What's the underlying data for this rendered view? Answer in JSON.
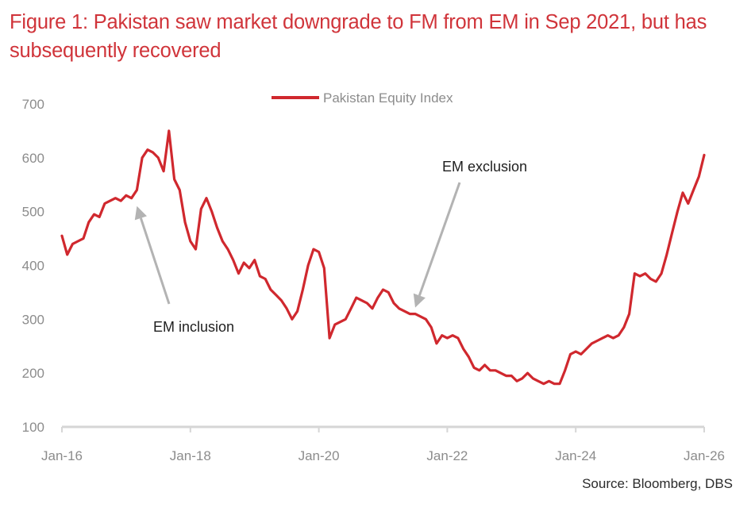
{
  "chart_data": {
    "type": "line",
    "title": "Figure 1: Pakistan saw market downgrade to FM from EM in Sep 2021, but has subsequently recovered",
    "xlabel": "",
    "ylabel": "",
    "ylim": [
      100,
      700
    ],
    "yticks": [
      100,
      200,
      300,
      400,
      500,
      600,
      700
    ],
    "xlim": [
      "2016-01",
      "2026-01"
    ],
    "xticks": [
      {
        "label": "Jan-16",
        "date": "2016-01"
      },
      {
        "label": "Jan-18",
        "date": "2018-01"
      },
      {
        "label": "Jan-20",
        "date": "2020-01"
      },
      {
        "label": "Jan-22",
        "date": "2022-01"
      },
      {
        "label": "Jan-24",
        "date": "2024-01"
      },
      {
        "label": "Jan-26",
        "date": "2026-01"
      }
    ],
    "grid": false,
    "legend": {
      "placement": "top-center",
      "entries": [
        "Pakistan Equity Index"
      ]
    },
    "series": [
      {
        "name": "Pakistan Equity Index",
        "color": "#d0282e",
        "x": [
          "2016-01",
          "2016-02",
          "2016-03",
          "2016-04",
          "2016-05",
          "2016-06",
          "2016-07",
          "2016-08",
          "2016-09",
          "2016-10",
          "2016-11",
          "2016-12",
          "2017-01",
          "2017-02",
          "2017-03",
          "2017-04",
          "2017-05",
          "2017-06",
          "2017-07",
          "2017-08",
          "2017-09",
          "2017-10",
          "2017-11",
          "2017-12",
          "2018-01",
          "2018-02",
          "2018-03",
          "2018-04",
          "2018-05",
          "2018-06",
          "2018-07",
          "2018-08",
          "2018-09",
          "2018-10",
          "2018-11",
          "2018-12",
          "2019-01",
          "2019-02",
          "2019-03",
          "2019-04",
          "2019-05",
          "2019-06",
          "2019-07",
          "2019-08",
          "2019-09",
          "2019-10",
          "2019-11",
          "2019-12",
          "2020-01",
          "2020-02",
          "2020-03",
          "2020-04",
          "2020-05",
          "2020-06",
          "2020-07",
          "2020-08",
          "2020-09",
          "2020-10",
          "2020-11",
          "2020-12",
          "2021-01",
          "2021-02",
          "2021-03",
          "2021-04",
          "2021-05",
          "2021-06",
          "2021-07",
          "2021-08",
          "2021-09",
          "2021-10",
          "2021-11",
          "2021-12",
          "2022-01",
          "2022-02",
          "2022-03",
          "2022-04",
          "2022-05",
          "2022-06",
          "2022-07",
          "2022-08",
          "2022-09",
          "2022-10",
          "2022-11",
          "2022-12",
          "2023-01",
          "2023-02",
          "2023-03",
          "2023-04",
          "2023-05",
          "2023-06",
          "2023-07",
          "2023-08",
          "2023-09",
          "2023-10",
          "2023-11",
          "2023-12",
          "2024-01",
          "2024-02",
          "2024-03",
          "2024-04",
          "2024-05",
          "2024-06",
          "2024-07",
          "2024-08",
          "2024-09",
          "2024-10",
          "2024-11",
          "2024-12",
          "2025-01",
          "2025-02",
          "2025-03",
          "2025-04",
          "2025-05",
          "2025-06",
          "2025-07",
          "2025-08",
          "2025-09",
          "2025-10",
          "2025-11",
          "2025-12",
          "2026-01"
        ],
        "values": [
          455,
          420,
          440,
          445,
          450,
          480,
          495,
          490,
          515,
          520,
          525,
          520,
          530,
          525,
          540,
          600,
          615,
          610,
          600,
          575,
          650,
          560,
          540,
          480,
          445,
          430,
          505,
          525,
          500,
          470,
          445,
          430,
          410,
          385,
          405,
          395,
          410,
          380,
          375,
          355,
          345,
          335,
          320,
          300,
          315,
          355,
          400,
          430,
          425,
          395,
          265,
          290,
          295,
          300,
          320,
          340,
          335,
          330,
          320,
          340,
          355,
          350,
          330,
          320,
          315,
          310,
          310,
          305,
          300,
          285,
          255,
          270,
          265,
          270,
          265,
          245,
          230,
          210,
          205,
          215,
          205,
          205,
          200,
          195,
          195,
          185,
          190,
          200,
          190,
          185,
          180,
          185,
          180,
          180,
          205,
          235,
          240,
          235,
          245,
          255,
          260,
          265,
          270,
          265,
          270,
          285,
          310,
          385,
          380,
          385,
          375,
          370,
          385,
          420,
          460,
          500,
          535,
          515,
          540,
          565,
          605
        ]
      }
    ],
    "annotations": [
      {
        "text": "EM inclusion",
        "points_to": {
          "date": "2017-03",
          "value": 525
        },
        "arrow_color": "#b3b3b3"
      },
      {
        "text": "EM exclusion",
        "points_to": {
          "date": "2021-07",
          "value": 310
        },
        "arrow_color": "#b3b3b3"
      }
    ]
  },
  "header": {
    "title_line1": "Figure 1: Pakistan saw market downgrade to FM from EM in Sep 2021, but has",
    "title_line2": "subsequently recovered"
  },
  "footer": {
    "source": "Source: Bloomberg, DBS"
  }
}
